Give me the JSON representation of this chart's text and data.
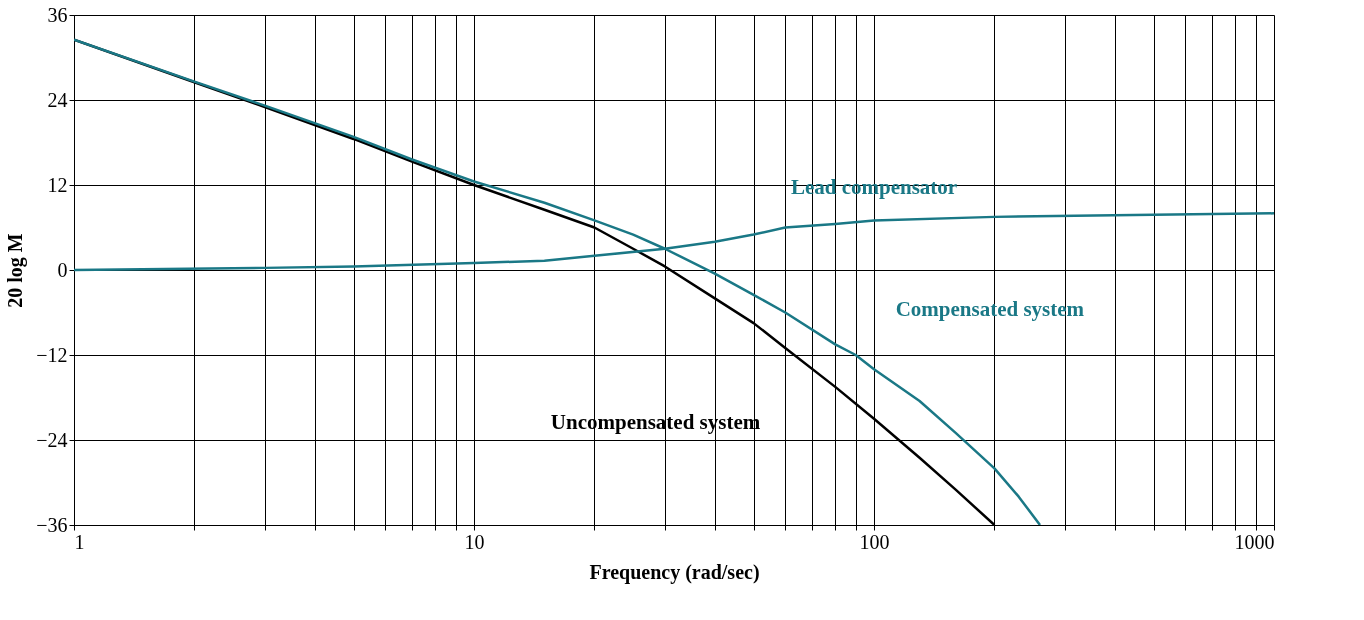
{
  "chart_data": {
    "type": "line",
    "xlabel": "Frequency (rad/sec)",
    "ylabel": "20 log M",
    "series": [
      {
        "name": "Uncompensated system",
        "color": "#000000",
        "x": [
          1,
          2,
          3,
          5,
          7,
          10,
          15,
          20,
          25,
          30,
          40,
          50,
          60,
          80,
          100,
          130,
          160,
          200
        ],
        "values": [
          32.5,
          26.5,
          23,
          18.5,
          15.3,
          12,
          8.5,
          6,
          3,
          0.5,
          -4,
          -7.5,
          -11,
          -16.5,
          -21,
          -26.5,
          -31,
          -36
        ]
      },
      {
        "name": "Compensated system",
        "color": "#1a7886",
        "x": [
          1,
          2,
          3,
          5,
          7,
          10,
          15,
          20,
          25,
          30,
          40,
          50,
          60,
          80,
          90,
          100,
          130,
          160,
          200,
          230,
          260
        ],
        "values": [
          32.5,
          26.6,
          23.2,
          18.8,
          15.6,
          12.5,
          9.5,
          7,
          5,
          3,
          -0.5,
          -3.5,
          -6,
          -10.5,
          -12,
          -14,
          -18.5,
          -23,
          -28,
          -32,
          -36
        ]
      },
      {
        "name": "Lead compensator",
        "color": "#1a7886",
        "x": [
          1,
          3,
          5,
          10,
          15,
          20,
          30,
          40,
          50,
          60,
          80,
          100,
          200,
          500,
          1000
        ],
        "values": [
          0,
          0.3,
          0.5,
          1,
          1.3,
          2,
          3,
          4,
          5,
          6,
          6.5,
          7,
          7.5,
          7.8,
          8
        ]
      }
    ],
    "xlim": [
      1,
      1000
    ],
    "xticks": [
      1,
      {
        "value": 2,
        "label": null
      },
      {
        "value": 3,
        "label": null
      },
      {
        "value": 4,
        "label": null
      },
      {
        "value": 5,
        "label": null
      },
      {
        "value": 6,
        "label": null
      },
      {
        "value": 7,
        "label": null
      },
      {
        "value": 8,
        "label": null
      },
      {
        "value": 9,
        "label": null
      },
      10,
      {
        "value": 20,
        "label": null
      },
      {
        "value": 30,
        "label": null
      },
      {
        "value": 40,
        "label": null
      },
      {
        "value": 50,
        "label": null
      },
      {
        "value": 60,
        "label": null
      },
      {
        "value": 70,
        "label": null
      },
      {
        "value": 80,
        "label": null
      },
      {
        "value": 90,
        "label": null
      },
      100,
      {
        "value": 200,
        "label": null
      },
      {
        "value": 300,
        "label": null
      },
      {
        "value": 400,
        "label": null
      },
      {
        "value": 500,
        "label": null
      },
      {
        "value": 600,
        "label": null
      },
      {
        "value": 700,
        "label": null
      },
      {
        "value": 800,
        "label": null
      },
      {
        "value": 900,
        "label": null
      },
      1000
    ],
    "ylim": [
      -36,
      36
    ],
    "yticks": [
      {
        "value": -36,
        "label": "−36"
      },
      {
        "value": -24,
        "label": "−24"
      },
      {
        "value": -12,
        "label": "−12"
      },
      0,
      12,
      24,
      36
    ],
    "log": "x",
    "grid": true,
    "legend": false
  }
}
